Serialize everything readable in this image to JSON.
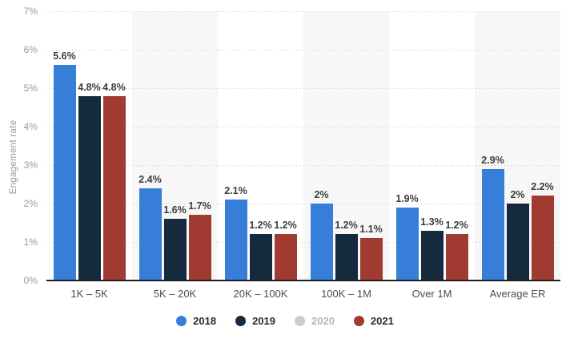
{
  "chart_data": {
    "type": "bar",
    "title": "",
    "xlabel": "",
    "ylabel": "Engagement rate",
    "categories": [
      "1K – 5K",
      "5K – 20K",
      "20K – 100K",
      "100K – 1M",
      "Over 1M",
      "Average ER"
    ],
    "series": [
      {
        "name": "2018",
        "color": "#377ed9",
        "enabled": true,
        "values": [
          5.6,
          2.4,
          2.1,
          2.0,
          1.9,
          2.9
        ],
        "labels": [
          "5.6%",
          "2.4%",
          "2.1%",
          "2%",
          "1.9%",
          "2.9%"
        ]
      },
      {
        "name": "2019",
        "color": "#162a3e",
        "enabled": true,
        "values": [
          4.8,
          1.6,
          1.2,
          1.2,
          1.3,
          2.0
        ],
        "labels": [
          "4.8%",
          "1.6%",
          "1.2%",
          "1.2%",
          "1.3%",
          "2%"
        ]
      },
      {
        "name": "2020",
        "color": "#c9cdd1",
        "enabled": false,
        "values": null,
        "labels": null
      },
      {
        "name": "2021",
        "color": "#a13a30",
        "enabled": true,
        "values": [
          4.8,
          1.7,
          1.2,
          1.1,
          1.2,
          2.2
        ],
        "labels": [
          "4.8%",
          "1.7%",
          "1.2%",
          "1.1%",
          "1.2%",
          "2.2%"
        ]
      }
    ],
    "y_ticks": [
      "0%",
      "1%",
      "2%",
      "3%",
      "4%",
      "5%",
      "6%",
      "7%"
    ],
    "ylim": [
      0,
      7
    ],
    "grid": "horizontal-dotted",
    "legend_position": "bottom",
    "column_bands": "alternate-even-columns-shaded",
    "colors": {
      "band": "#f7f7f7",
      "gridline": "#cccccc",
      "axis_line": "#1f1f1f",
      "tick_text": "#999999",
      "category_text": "#4d4d4d",
      "value_text": "#3d3d3d",
      "legend_text": "#2b2b2b",
      "legend_disabled": "#b5b5b5",
      "background": "#ffffff"
    }
  }
}
